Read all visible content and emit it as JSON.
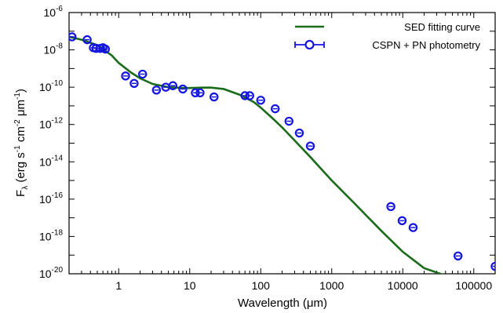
{
  "chart_data": {
    "type": "scatter",
    "xlabel": "Wavelength (μm)",
    "ylabel_parts": {
      "base": "F",
      "sub": "λ",
      "unit_open": " (erg s",
      "exp1": "-1",
      "cm": " cm",
      "exp2": "-2",
      "mu": " μm",
      "exp3": "-1",
      "close": ")"
    },
    "x_scale": "log",
    "y_scale": "log",
    "xlim": [
      0.2,
      200000
    ],
    "ylim": [
      1e-20,
      1e-06
    ],
    "x_ticks": [
      {
        "value": 1,
        "label": "1"
      },
      {
        "value": 10,
        "label": "10"
      },
      {
        "value": 100,
        "label": "100"
      },
      {
        "value": 1000,
        "label": "1000"
      },
      {
        "value": 10000,
        "label": "10000"
      },
      {
        "value": 100000,
        "label": "100000"
      }
    ],
    "y_ticks": [
      {
        "value": 1e-20,
        "base": "10",
        "exp": "-20"
      },
      {
        "value": 1e-18,
        "base": "10",
        "exp": "-18"
      },
      {
        "value": 1e-16,
        "base": "10",
        "exp": "-16"
      },
      {
        "value": 1e-14,
        "base": "10",
        "exp": "-14"
      },
      {
        "value": 1e-12,
        "base": "10",
        "exp": "-12"
      },
      {
        "value": 1e-10,
        "base": "10",
        "exp": "-10"
      },
      {
        "value": 1e-08,
        "base": "10",
        "exp": "-8"
      },
      {
        "value": 1e-06,
        "base": "10",
        "exp": "-6"
      }
    ],
    "grid": false,
    "legend_position": "top-right",
    "series": [
      {
        "name": "SED fitting curve",
        "kind": "line",
        "color": "#1a6b1a",
        "x": [
          0.2,
          0.3,
          0.5,
          0.8,
          1,
          1.5,
          2,
          3,
          5,
          8,
          10,
          15,
          20,
          30,
          50,
          80,
          100,
          150,
          200,
          300,
          500,
          1000,
          2000,
          5000,
          10000,
          20000,
          50000,
          100000,
          200000
        ],
        "y": [
          5e-08,
          3.5e-08,
          1.8e-08,
          5e-09,
          2e-09,
          6e-10,
          3e-10,
          1.5e-10,
          1e-10,
          9e-11,
          9e-11,
          9.5e-11,
          9.5e-11,
          8e-11,
          4e-11,
          1.6e-11,
          8e-12,
          2e-12,
          7e-13,
          1.4e-13,
          1.8e-14,
          1e-15,
          7e-17,
          2e-18,
          1.5e-19,
          2e-20,
          6e-21,
          4e-21,
          4e-21
        ]
      },
      {
        "name": "CSPN + PN photometry",
        "kind": "points",
        "color": "#1414e0",
        "x": [
          0.22,
          0.36,
          0.44,
          0.48,
          0.55,
          0.6,
          0.65,
          1.25,
          1.65,
          2.17,
          3.4,
          4.6,
          5.8,
          8,
          12,
          14,
          22,
          60,
          70,
          100,
          160,
          250,
          350,
          500,
          6800,
          9800,
          14000,
          60000,
          200000
        ],
        "y": [
          5e-08,
          3.5e-08,
          1.3e-08,
          1.2e-08,
          1.2e-08,
          1.3e-08,
          1.1e-08,
          4e-10,
          1.6e-10,
          5e-10,
          7e-11,
          1e-10,
          1.2e-10,
          8e-11,
          5e-11,
          5e-11,
          3e-11,
          3.5e-11,
          3.5e-11,
          2e-11,
          7e-12,
          1.5e-12,
          3.5e-13,
          7e-14,
          4e-17,
          7e-18,
          3e-18,
          9e-20,
          2.5e-20
        ]
      }
    ]
  }
}
